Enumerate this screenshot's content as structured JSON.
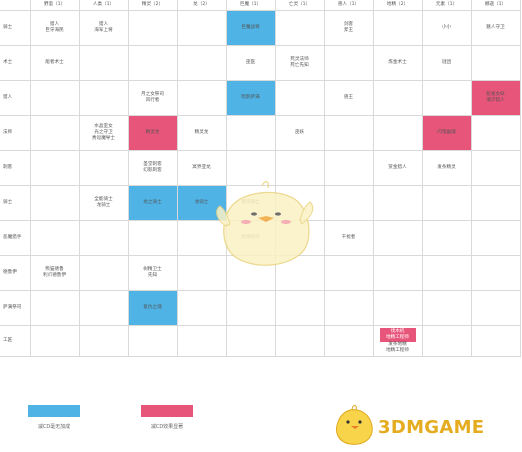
{
  "columns": [
    "野蛮（1）",
    "人类（1）",
    "精灵（2）",
    "龙（2）",
    "巨魔（1）",
    "亡灵（1）",
    "兽人（1）",
    "地精（2）",
    "元素（1）",
    "娜迦（1）"
  ],
  "rows": [
    {
      "label": "骑士",
      "cells": [
        {
          "lines": [
            "猎人",
            "巨牙海民"
          ]
        },
        {
          "lines": [
            "猎人",
            "海军上将"
          ]
        },
        {
          "lines": []
        },
        {
          "lines": []
        },
        {
          "lines": [
            "巨魔战将"
          ],
          "hl": "blue"
        },
        {
          "lines": []
        },
        {
          "lines": [
            "剑客",
            "斧王"
          ]
        },
        {
          "lines": []
        },
        {
          "lines": [
            "小小"
          ]
        },
        {
          "lines": [
            "魅人守卫"
          ]
        }
      ]
    },
    {
      "label": "术士",
      "cells": [
        {
          "lines": [
            "能者术士"
          ]
        },
        {
          "lines": []
        },
        {
          "lines": []
        },
        {
          "lines": []
        },
        {
          "lines": [
            "巫医"
          ]
        },
        {
          "lines": [
            "死灵法师",
            "死亡先知"
          ]
        },
        {
          "lines": []
        },
        {
          "lines": [
            "炼金术士"
          ]
        },
        {
          "lines": [
            "谜团"
          ]
        },
        {
          "lines": []
        }
      ]
    },
    {
      "label": "猎人",
      "cells": [
        {
          "lines": []
        },
        {
          "lines": []
        },
        {
          "lines": [
            "月之女祭司",
            "风行者"
          ]
        },
        {
          "lines": []
        },
        {
          "lines": [
            "暗影萨满"
          ],
          "hl": "blue"
        },
        {
          "lines": []
        },
        {
          "lines": [
            "兽王"
          ]
        },
        {
          "lines": []
        },
        {
          "lines": []
        },
        {
          "lines": [
            "蛇发女妖",
            "潮汐猎人"
          ],
          "hl": "pink"
        }
      ]
    },
    {
      "label": "法师",
      "cells": [
        {
          "lines": []
        },
        {
          "lines": [
            "水晶室女",
            "光之守卫",
            "秀逗魔导士"
          ]
        },
        {
          "lines": [
            "精灵龙"
          ],
          "hl": "pink"
        },
        {
          "lines": [
            "精灵龙"
          ]
        },
        {
          "lines": []
        },
        {
          "lines": [
            "巫妖"
          ]
        },
        {
          "lines": []
        },
        {
          "lines": []
        },
        {
          "lines": [
            "闪电幽魂"
          ],
          "hl": "pink"
        },
        {
          "lines": []
        }
      ]
    },
    {
      "label": "刺客",
      "cells": [
        {
          "lines": []
        },
        {
          "lines": []
        },
        {
          "lines": [
            "圣堂刺客",
            "幻影刺客"
          ]
        },
        {
          "lines": [
            "冥界亚龙"
          ]
        },
        {
          "lines": []
        },
        {
          "lines": []
        },
        {
          "lines": []
        },
        {
          "lines": [
            "赏金猎人"
          ]
        },
        {
          "lines": [
            "发条精灵"
          ]
        },
        {
          "lines": []
        }
      ]
    },
    {
      "label": "骑士",
      "cells": [
        {
          "lines": []
        },
        {
          "lines": [
            "全能骑士",
            "龙骑士"
          ]
        },
        {
          "lines": [
            "龙之骑士"
          ],
          "hl": "blue"
        },
        {
          "lines": [
            "龙骑士"
          ],
          "hl": "blue"
        },
        {
          "lines": [
            "混沌骑士"
          ]
        },
        {
          "lines": []
        },
        {
          "lines": []
        },
        {
          "lines": []
        },
        {
          "lines": []
        },
        {
          "lines": []
        }
      ]
    },
    {
      "label": "恶魔猎手",
      "cells": [
        {
          "lines": []
        },
        {
          "lines": []
        },
        {
          "lines": []
        },
        {
          "lines": []
        },
        {
          "lines": [
            "恐怖利刃"
          ]
        },
        {
          "lines": []
        },
        {
          "lines": [
            "干扰者"
          ]
        },
        {
          "lines": []
        },
        {
          "lines": []
        },
        {
          "lines": []
        }
      ]
    },
    {
      "label": "德鲁伊",
      "cells": [
        {
          "lines": [
            "熊猫德鲁",
            "利爪德鲁伊"
          ]
        },
        {
          "lines": []
        },
        {
          "lines": [
            "树精卫士",
            "先知"
          ]
        },
        {
          "lines": []
        },
        {
          "lines": []
        },
        {
          "lines": []
        },
        {
          "lines": []
        },
        {
          "lines": []
        },
        {
          "lines": []
        },
        {
          "lines": []
        }
      ]
    },
    {
      "label": "萨满祭司",
      "cells": [
        {
          "lines": []
        },
        {
          "lines": []
        },
        {
          "lines": [
            "复仇之魂"
          ],
          "hl": "blue"
        },
        {
          "lines": []
        },
        {
          "lines": []
        },
        {
          "lines": []
        },
        {
          "lines": []
        },
        {
          "lines": []
        },
        {
          "lines": []
        },
        {
          "lines": []
        }
      ]
    },
    {
      "label": "工匠",
      "cells": [
        {
          "lines": []
        },
        {
          "lines": []
        },
        {
          "lines": []
        },
        {
          "lines": []
        },
        {
          "lines": []
        },
        {
          "lines": []
        },
        {
          "lines": []
        },
        {
          "lines": [
            "伐木机",
            "地精工程师"
          ],
          "tag": "pink",
          "extra": [
            "发条地精",
            "地精工程师"
          ]
        },
        {
          "lines": []
        },
        {
          "lines": []
        }
      ]
    }
  ],
  "legend": {
    "blue_label": "减CD毫无加成",
    "pink_label": "减CD效果显著",
    "blue_color": "#4fb3e6",
    "pink_color": "#e8557a"
  },
  "watermark": {
    "text": "3DMGAME",
    "color": "#e5ac1f"
  }
}
